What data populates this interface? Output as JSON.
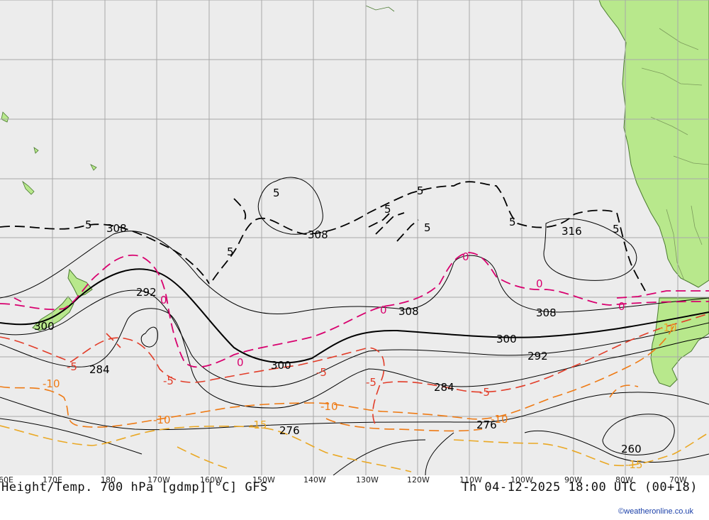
{
  "title": "Height/Temp. 700 hPa [gdmp][°C] GFS",
  "run_time": "Th 04-12-2025 18:00 UTC (00+18)",
  "credit": "©weatheronline.co.uk",
  "longitude_labels": [
    "60E",
    "170E",
    "180",
    "170W",
    "160W",
    "150W",
    "140W",
    "130W",
    "120W",
    "110W",
    "100W",
    "90W",
    "80W",
    "70W"
  ],
  "contour_labels": {
    "height": [
      "308",
      "308",
      "308",
      "308",
      "316",
      "300",
      "300",
      "300",
      "292",
      "292",
      "284",
      "284",
      "276",
      "276",
      "260"
    ],
    "temperature": [
      "5",
      "5",
      "5",
      "5",
      "5",
      "5",
      "5",
      "5",
      "0",
      "0",
      "0",
      "0",
      "0",
      "0",
      "-5",
      "-5",
      "-5",
      "-5",
      "-5",
      "-10",
      "-10",
      "-10",
      "-10",
      "-15",
      "-15",
      "-10"
    ]
  },
  "colors": {
    "ocean": "#ececec",
    "land": "#b8e88c",
    "coast": "#4a7a30",
    "grid": "#a8a8a8",
    "height_contour": "#000000",
    "temp_5": "#000000",
    "temp_0": "#d8006e",
    "temp_minus5": "#e23c28",
    "temp_minus10": "#ee7a14",
    "temp_minus15": "#eaa824"
  }
}
